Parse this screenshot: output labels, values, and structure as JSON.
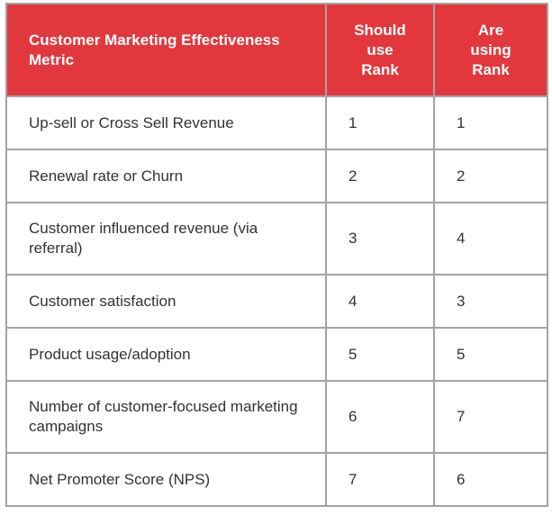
{
  "header": {
    "metric": "Customer Marketing Effectiveness Metric",
    "should_use": [
      "Should",
      "use",
      "Rank"
    ],
    "are_using": [
      "Are",
      "using",
      "Rank"
    ]
  },
  "rows": [
    {
      "metric": "Up-sell or Cross Sell Revenue",
      "should": "1",
      "using": "1"
    },
    {
      "metric": "Renewal rate or Churn",
      "should": "2",
      "using": "2"
    },
    {
      "metric": "Customer influenced revenue (via referral)",
      "should": "3",
      "using": "4"
    },
    {
      "metric": "Customer satisfaction",
      "should": "4",
      "using": "3"
    },
    {
      "metric": "Product usage/adoption",
      "should": "5",
      "using": "5"
    },
    {
      "metric": "Number of customer-focused marketing campaigns",
      "should": "6",
      "using": "7"
    },
    {
      "metric": "Net Promoter Score (NPS)",
      "should": "7",
      "using": "6"
    }
  ],
  "colors": {
    "header_bg": "#e2383d",
    "border": "#a3a3a3"
  }
}
